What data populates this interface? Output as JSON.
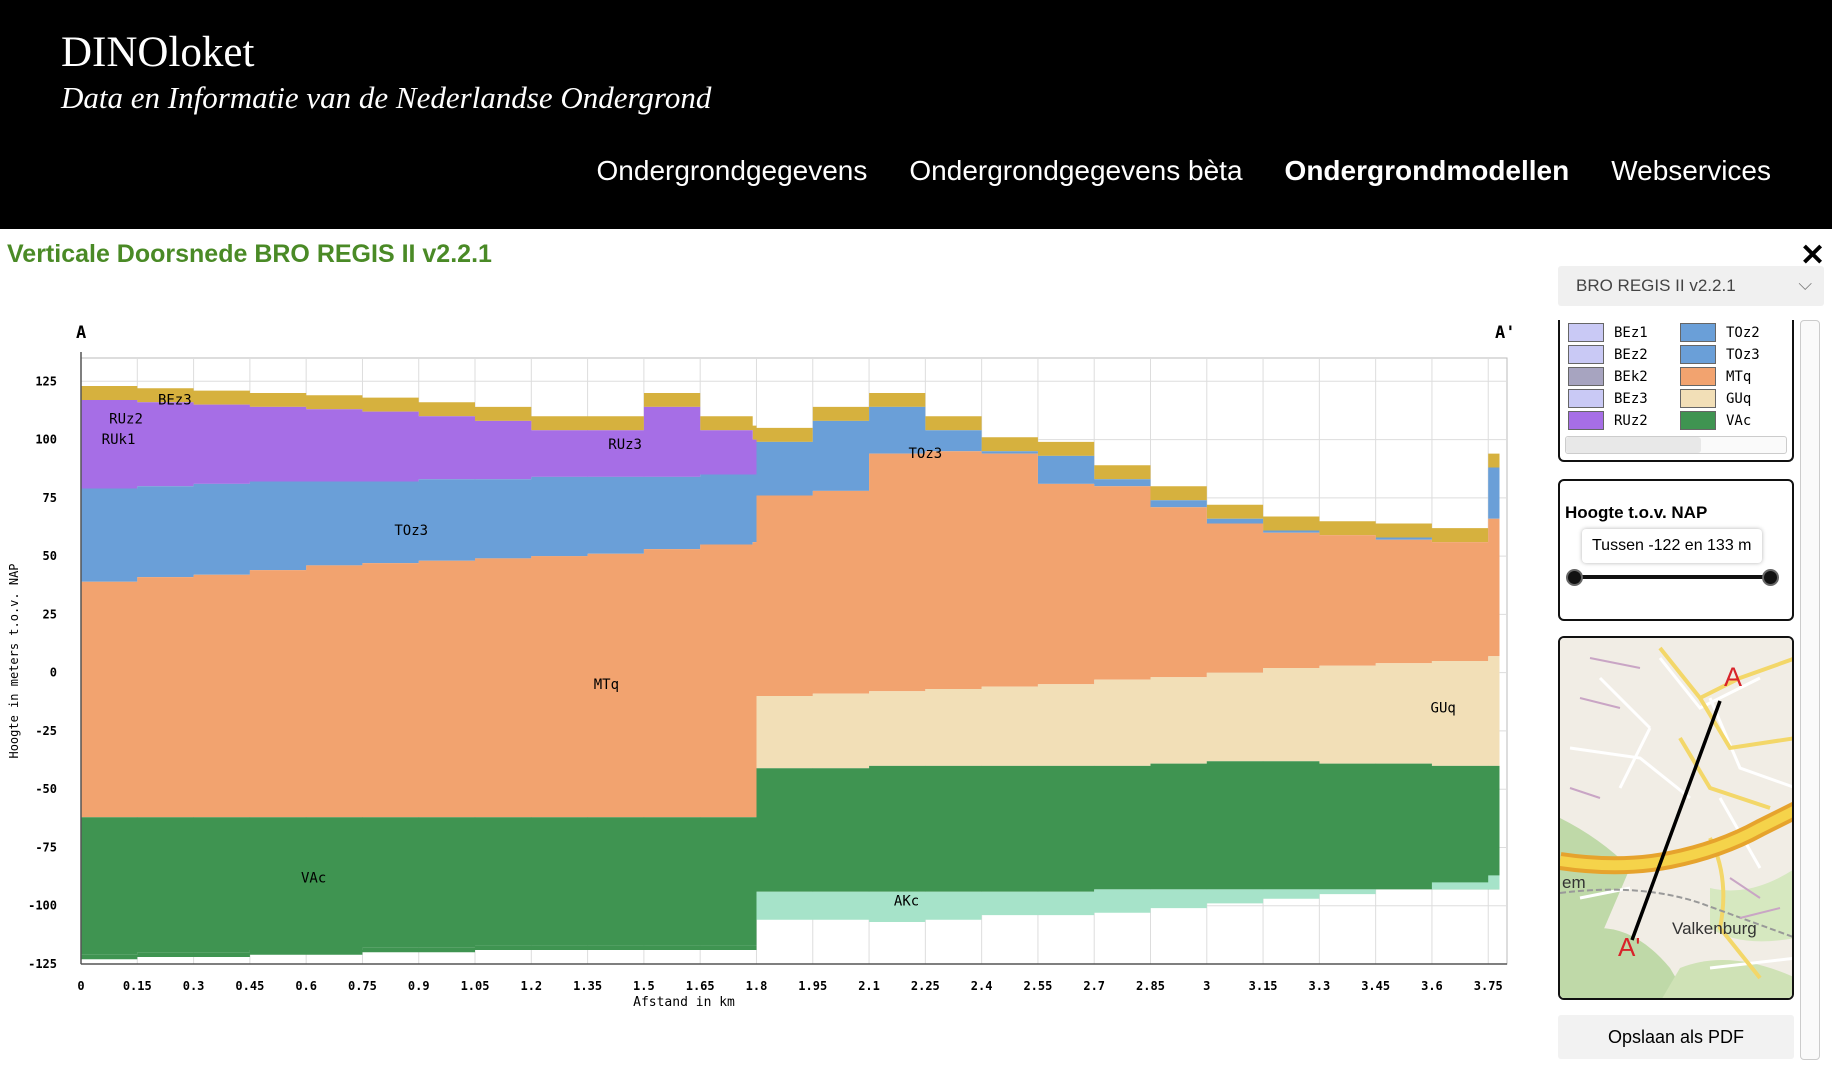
{
  "header": {
    "logo": "DINOloket",
    "tagline": "Data en Informatie van de Nederlandse Ondergrond",
    "nav": [
      "Ondergrondgegevens",
      "Ondergrondgegevens bèta",
      "Ondergrondmodellen",
      "Webservices"
    ],
    "active_nav": "Ondergrondmodellen"
  },
  "panel": {
    "title": "Verticale Doorsnede BRO REGIS II v2.2.1",
    "close": "✕"
  },
  "sidebar": {
    "model_select": "BRO REGIS II v2.2.1",
    "legend": [
      {
        "code": "BEz1",
        "color": "#c9c9f5"
      },
      {
        "code": "TOz2",
        "color": "#6a9fd8"
      },
      {
        "code": "BEz2",
        "color": "#c9c9f5"
      },
      {
        "code": "TOz3",
        "color": "#6a9fd8"
      },
      {
        "code": "BEk2",
        "color": "#a7a4c0"
      },
      {
        "code": "MTq",
        "color": "#f2a36f"
      },
      {
        "code": "BEz3",
        "color": "#c9c9f5"
      },
      {
        "code": "GUq",
        "color": "#f2dfb7"
      },
      {
        "code": "RUz2",
        "color": "#a66ee6"
      },
      {
        "code": "VAc",
        "color": "#3f9451"
      }
    ],
    "height_filter": {
      "title": "Hoogte t.o.v. NAP",
      "range_text": "Tussen -122 en 133 m"
    },
    "map": {
      "start_label": "A",
      "end_label": "A'",
      "town": "Valkenburg",
      "edge_label": "em"
    },
    "save_pdf": "Opslaan als PDF"
  },
  "chart_data": {
    "type": "area",
    "title": "",
    "start_label": "A",
    "end_label": "A'",
    "xlabel": "Afstand in km",
    "ylabel": "Hoogte in meters t.o.v. NAP",
    "xlim": [
      0,
      3.8
    ],
    "ylim": [
      -125,
      135
    ],
    "xticks": [
      "0",
      "0.15",
      "0.3",
      "0.45",
      "0.6",
      "0.75",
      "0.9",
      "1.05",
      "1.2",
      "1.35",
      "1.5",
      "1.65",
      "1.8",
      "1.95",
      "2.1",
      "2.25",
      "2.4",
      "2.55",
      "2.7",
      "2.85",
      "3",
      "3.15",
      "3.3",
      "3.45",
      "3.6",
      "3.75"
    ],
    "yticks": [
      125,
      100,
      75,
      50,
      25,
      0,
      -25,
      -50,
      -75,
      -100,
      -125
    ],
    "x": [
      0,
      0.15,
      0.3,
      0.45,
      0.6,
      0.75,
      0.9,
      1.05,
      1.2,
      1.35,
      1.5,
      1.65,
      1.79,
      1.8,
      1.95,
      2.1,
      2.25,
      2.4,
      2.55,
      2.7,
      2.85,
      3,
      3.15,
      3.3,
      3.45,
      3.6,
      3.75
    ],
    "series": [
      {
        "name": "AKc",
        "color": "#a6e3c9",
        "values": [
          null,
          null,
          null,
          null,
          null,
          null,
          null,
          null,
          null,
          null,
          null,
          null,
          null,
          -106,
          -106,
          -107,
          -106,
          -104,
          -104,
          -103,
          -101,
          -99,
          -97,
          -95,
          -93,
          -90,
          -87
        ]
      },
      {
        "name": "VAc",
        "color": "#3f9451",
        "values": [
          -121,
          -120,
          -120,
          -119,
          -119,
          -118,
          -118,
          -117,
          -117,
          -117,
          -117,
          -117,
          -117,
          -94,
          -94,
          -94,
          -94,
          -94,
          -94,
          -93,
          -93,
          -93,
          -93,
          -93,
          -93,
          -93,
          -93
        ]
      },
      {
        "name": "GUq",
        "color": "#f2dfb7",
        "values": [
          null,
          null,
          null,
          null,
          null,
          null,
          null,
          null,
          null,
          null,
          null,
          null,
          null,
          -41,
          -41,
          -40,
          -40,
          -40,
          -40,
          -40,
          -39,
          -38,
          -38,
          -39,
          -39,
          -40,
          -40
        ]
      },
      {
        "name": "MTq",
        "color": "#f2a36f",
        "values": [
          -62,
          -62,
          -62,
          -62,
          -62,
          -62,
          -62,
          -62,
          -62,
          -62,
          -62,
          -62,
          -62,
          -10,
          -9,
          -8,
          -7,
          -6,
          -5,
          -3,
          -2,
          0,
          2,
          3,
          4,
          5,
          7
        ]
      },
      {
        "name": "TOz3",
        "color": "#6a9fd8",
        "values": [
          39,
          41,
          42,
          44,
          46,
          47,
          48,
          49,
          50,
          51,
          53,
          55,
          56,
          76,
          78,
          94,
          95,
          94,
          81,
          80,
          71,
          64,
          60,
          59,
          57,
          56,
          66
        ]
      },
      {
        "name": "RUz2",
        "color": "#a66ee6",
        "values": [
          79,
          80,
          81,
          82,
          82,
          82,
          83,
          83,
          84,
          84,
          84,
          85,
          85,
          null,
          null,
          null,
          null,
          null,
          null,
          null,
          null,
          null,
          null,
          null,
          null,
          null,
          null
        ]
      },
      {
        "name": "BEz3",
        "color": "#c9c9f5",
        "values": [
          117,
          116,
          115,
          114,
          113,
          112,
          110,
          108,
          104,
          104,
          114,
          104,
          100,
          99,
          108,
          114,
          104,
          95,
          93,
          83,
          74,
          66,
          61,
          59,
          58,
          56,
          88
        ]
      }
    ],
    "cap_color": "#d6b13e",
    "labels": [
      {
        "text": "BEz3",
        "x": 0.25,
        "y": 115
      },
      {
        "text": "RUz2",
        "x": 0.12,
        "y": 107
      },
      {
        "text": "RUk1",
        "x": 0.1,
        "y": 98
      },
      {
        "text": "RUz3",
        "x": 1.45,
        "y": 96
      },
      {
        "text": "TOz3",
        "x": 0.88,
        "y": 59
      },
      {
        "text": "TOz3",
        "x": 2.25,
        "y": 92
      },
      {
        "text": "MTq",
        "x": 1.4,
        "y": -7
      },
      {
        "text": "GUq",
        "x": 3.63,
        "y": -17
      },
      {
        "text": "VAc",
        "x": 0.62,
        "y": -90
      },
      {
        "text": "AKc",
        "x": 2.2,
        "y": -100
      }
    ]
  }
}
